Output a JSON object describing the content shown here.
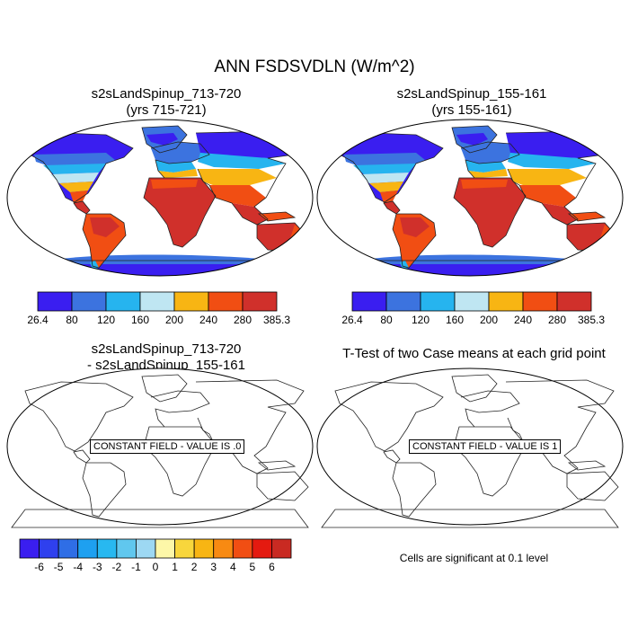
{
  "figure": {
    "title": "ANN FSDSVDLN (W/m^2)"
  },
  "panels": {
    "top_left": {
      "title_line1": "s2sLandSpinup_713-720",
      "title_line2": "(yrs 715-721)"
    },
    "top_right": {
      "title_line1": "s2sLandSpinup_155-161",
      "title_line2": "(yrs 155-161)"
    },
    "bottom_left": {
      "title_line1": "s2sLandSpinup_713-720",
      "title_line2": "- s2sLandSpinup_155-161",
      "constant_label": "CONSTANT FIELD - VALUE IS .0"
    },
    "bottom_right": {
      "title_line1": "T-Test of two Case means at each grid point",
      "constant_label": "CONSTANT FIELD - VALUE IS 1",
      "note": "Cells are significant at 0.1 level"
    }
  },
  "colorbars": {
    "mean": {
      "labels": [
        "26.4",
        "80",
        "120",
        "160",
        "200",
        "240",
        "280",
        "385.3"
      ],
      "colors": [
        "#3a1ef0",
        "#3c73df",
        "#26b4ef",
        "#bfe6f2",
        "#f8b513",
        "#f14e13",
        "#d0302b"
      ]
    },
    "diff": {
      "labels": [
        "-6",
        "-5",
        "-4",
        "-3",
        "-2",
        "-1",
        "0",
        "1",
        "2",
        "3",
        "4",
        "5",
        "6"
      ],
      "colors": [
        "#3a1ef0",
        "#2f40ee",
        "#2f6ee6",
        "#1ea0f0",
        "#28b8f0",
        "#60c7ee",
        "#9dd8f3",
        "#fdf7a8",
        "#f8d63c",
        "#f8b513",
        "#f88a12",
        "#f14e13",
        "#e41a10",
        "#c92a22"
      ]
    }
  }
}
